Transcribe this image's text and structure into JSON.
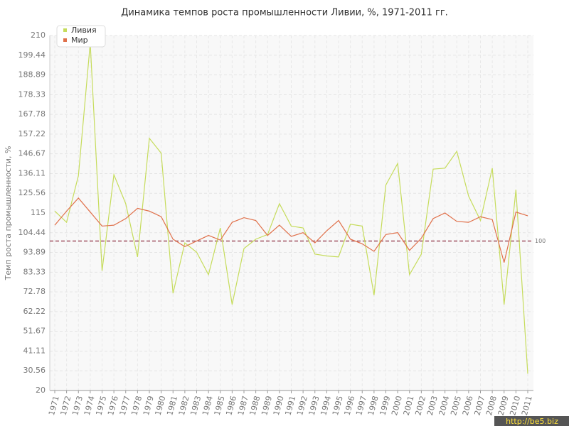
{
  "chart_data": {
    "type": "line",
    "title": "Динамика темпов роста промышленности Ливии, %, 1971-2011 гг.",
    "y_label": "Темп роста промышленности, %",
    "categories": [
      "1971",
      "1972",
      "1973",
      "1974",
      "1975",
      "1976",
      "1977",
      "1978",
      "1979",
      "1980",
      "1981",
      "1982",
      "1983",
      "1984",
      "1985",
      "1986",
      "1987",
      "1988",
      "1989",
      "1990",
      "1991",
      "1992",
      "1993",
      "1994",
      "1995",
      "1996",
      "1997",
      "1998",
      "1999",
      "2000",
      "2001",
      "2002",
      "2003",
      "2004",
      "2005",
      "2006",
      "2007",
      "2008",
      "2009",
      "2010",
      "2011"
    ],
    "series": [
      {
        "name": "Ливия",
        "color": "#c6dc5c",
        "values": [
          116,
          110,
          135,
          206,
          84,
          135.5,
          120,
          91.5,
          155,
          147,
          72,
          99,
          94,
          82,
          107,
          66,
          96,
          101,
          103.5,
          120,
          108,
          107,
          93,
          92,
          91.5,
          109,
          108,
          71,
          130,
          141.5,
          82,
          93,
          138.5,
          139,
          148,
          124,
          111,
          139,
          66,
          127.5,
          29
        ]
      },
      {
        "name": "Мир",
        "color": "#e0704a",
        "values": [
          108.5,
          116,
          123,
          115.5,
          108,
          108.5,
          112,
          117.5,
          116,
          113,
          101,
          97,
          100,
          103,
          100.5,
          110,
          112.5,
          111,
          103,
          108.5,
          102.5,
          104.5,
          99,
          105.5,
          111,
          101,
          98.5,
          94.5,
          103.5,
          104.5,
          95,
          101.5,
          112,
          115,
          110.5,
          110,
          113,
          111.5,
          88.5,
          115.5,
          113.5
        ]
      }
    ],
    "ylim": [
      20,
      210
    ],
    "yticks": [
      20,
      30.56,
      41.11,
      51.67,
      62.22,
      72.78,
      83.33,
      93.89,
      104.44,
      115,
      125.56,
      136.11,
      146.67,
      157.22,
      167.78,
      178.33,
      188.89,
      199.44,
      210
    ],
    "reference_line": 100,
    "reference_color": "#a05060",
    "grid": true,
    "legend": "top-left",
    "watermark": "http://be5.biz"
  }
}
